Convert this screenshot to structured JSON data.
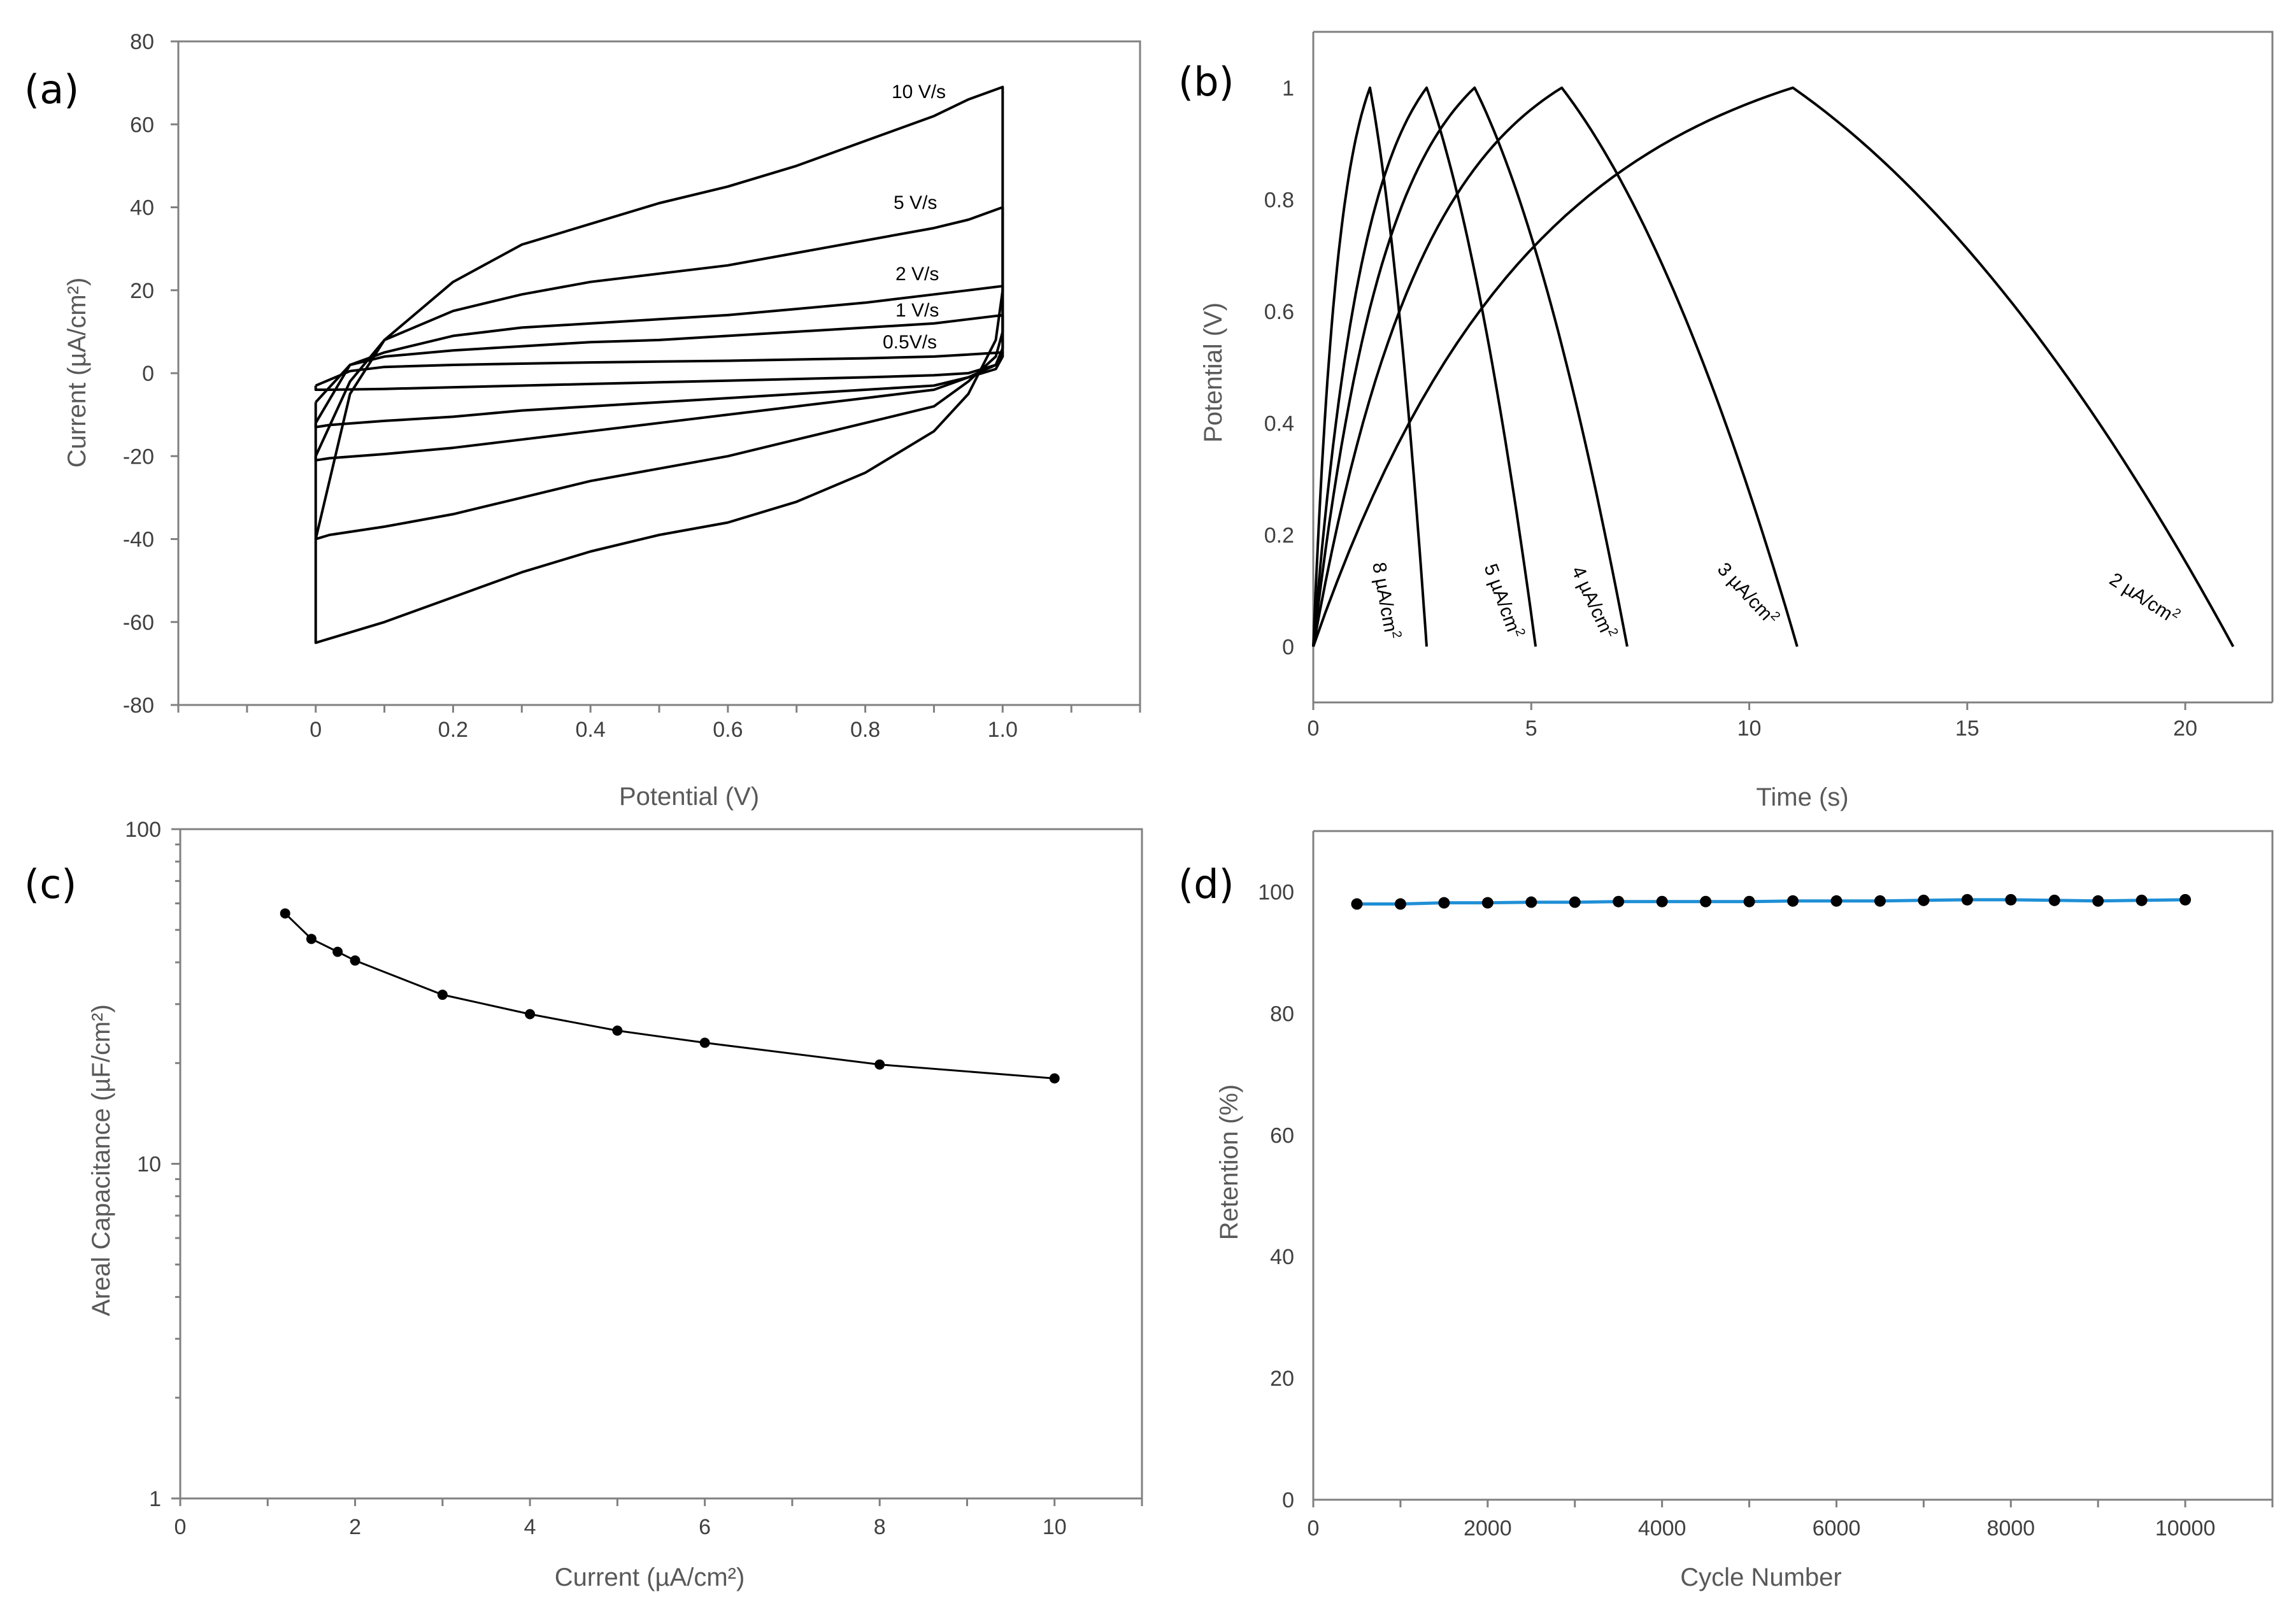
{
  "chart_data": [
    {
      "panel": "(a)",
      "type": "line",
      "title": "",
      "xlabel": "Potential (V)",
      "ylabel": "Current (µA/cm²)",
      "xlim": [
        -0.2,
        1.2
      ],
      "ylim": [
        -80,
        80
      ],
      "xticks": [
        0,
        0.2,
        0.4,
        0.6,
        0.8,
        1.0
      ],
      "xtick_labels": [
        "0",
        "0.2",
        "0.4",
        "0.6",
        "0.8",
        "1.0"
      ],
      "yticks": [
        -80,
        -60,
        -40,
        -20,
        0,
        20,
        40,
        60,
        80
      ],
      "ytick_labels": [
        "-80",
        "-60",
        "-40",
        "-20",
        "0",
        "20",
        "40",
        "60",
        "80"
      ],
      "series": [
        {
          "name": "10 V/s",
          "upper": [
            [
              0,
              -40
            ],
            [
              0.05,
              -5
            ],
            [
              0.1,
              8
            ],
            [
              0.2,
              22
            ],
            [
              0.3,
              31
            ],
            [
              0.4,
              36
            ],
            [
              0.5,
              41
            ],
            [
              0.6,
              45
            ],
            [
              0.7,
              50
            ],
            [
              0.8,
              56
            ],
            [
              0.9,
              62
            ],
            [
              0.95,
              66
            ],
            [
              1.0,
              69
            ]
          ],
          "lower": [
            [
              1.0,
              69
            ],
            [
              1.0,
              20
            ],
            [
              0.99,
              8
            ],
            [
              0.95,
              -5
            ],
            [
              0.9,
              -14
            ],
            [
              0.8,
              -24
            ],
            [
              0.7,
              -31
            ],
            [
              0.6,
              -36
            ],
            [
              0.5,
              -39
            ],
            [
              0.4,
              -43
            ],
            [
              0.3,
              -48
            ],
            [
              0.2,
              -54
            ],
            [
              0.1,
              -60
            ],
            [
              0.02,
              -64
            ],
            [
              0,
              -65
            ],
            [
              0,
              -40
            ]
          ]
        },
        {
          "name": "5 V/s",
          "upper": [
            [
              0,
              -20
            ],
            [
              0.05,
              -2
            ],
            [
              0.1,
              8
            ],
            [
              0.2,
              15
            ],
            [
              0.3,
              19
            ],
            [
              0.4,
              22
            ],
            [
              0.5,
              24
            ],
            [
              0.6,
              26
            ],
            [
              0.7,
              29
            ],
            [
              0.8,
              32
            ],
            [
              0.9,
              35
            ],
            [
              0.95,
              37
            ],
            [
              1.0,
              40
            ]
          ],
          "lower": [
            [
              1.0,
              40
            ],
            [
              1.0,
              10
            ],
            [
              0.99,
              4
            ],
            [
              0.95,
              -2
            ],
            [
              0.9,
              -8
            ],
            [
              0.8,
              -12
            ],
            [
              0.7,
              -16
            ],
            [
              0.6,
              -20
            ],
            [
              0.5,
              -23
            ],
            [
              0.4,
              -26
            ],
            [
              0.3,
              -30
            ],
            [
              0.2,
              -34
            ],
            [
              0.1,
              -37
            ],
            [
              0.02,
              -39
            ],
            [
              0,
              -40
            ],
            [
              0,
              -20
            ]
          ]
        },
        {
          "name": "2 V/s",
          "upper": [
            [
              0,
              -12
            ],
            [
              0.05,
              2
            ],
            [
              0.1,
              5
            ],
            [
              0.2,
              9
            ],
            [
              0.3,
              11
            ],
            [
              0.4,
              12
            ],
            [
              0.5,
              13
            ],
            [
              0.6,
              14
            ],
            [
              0.7,
              15.5
            ],
            [
              0.8,
              17
            ],
            [
              0.9,
              19
            ],
            [
              0.95,
              20
            ],
            [
              1.0,
              21
            ]
          ],
          "lower": [
            [
              1.0,
              21
            ],
            [
              1.0,
              6
            ],
            [
              0.99,
              2
            ],
            [
              0.95,
              -1
            ],
            [
              0.9,
              -4
            ],
            [
              0.8,
              -6
            ],
            [
              0.7,
              -8
            ],
            [
              0.6,
              -10
            ],
            [
              0.5,
              -12
            ],
            [
              0.4,
              -14
            ],
            [
              0.3,
              -16
            ],
            [
              0.2,
              -18
            ],
            [
              0.1,
              -19.5
            ],
            [
              0.02,
              -20.5
            ],
            [
              0,
              -21
            ],
            [
              0,
              -12
            ]
          ]
        },
        {
          "name": "1 V/s",
          "upper": [
            [
              0,
              -7
            ],
            [
              0.05,
              2
            ],
            [
              0.1,
              4
            ],
            [
              0.2,
              5.5
            ],
            [
              0.3,
              6.5
            ],
            [
              0.4,
              7.5
            ],
            [
              0.5,
              8
            ],
            [
              0.6,
              9
            ],
            [
              0.7,
              10
            ],
            [
              0.8,
              11
            ],
            [
              0.9,
              12
            ],
            [
              0.95,
              13
            ],
            [
              1.0,
              14
            ]
          ],
          "lower": [
            [
              1.0,
              14
            ],
            [
              1.0,
              4
            ],
            [
              0.99,
              1
            ],
            [
              0.95,
              -1
            ],
            [
              0.9,
              -3
            ],
            [
              0.8,
              -4
            ],
            [
              0.7,
              -5
            ],
            [
              0.6,
              -6
            ],
            [
              0.5,
              -7
            ],
            [
              0.4,
              -8
            ],
            [
              0.3,
              -9
            ],
            [
              0.2,
              -10.5
            ],
            [
              0.1,
              -11.5
            ],
            [
              0.02,
              -12.5
            ],
            [
              0,
              -13
            ],
            [
              0,
              -7
            ]
          ]
        },
        {
          "name": "0.5V/s",
          "upper": [
            [
              0,
              -3
            ],
            [
              0.05,
              0.5
            ],
            [
              0.1,
              1.5
            ],
            [
              0.2,
              2
            ],
            [
              0.3,
              2.3
            ],
            [
              0.4,
              2.6
            ],
            [
              0.5,
              2.8
            ],
            [
              0.6,
              3
            ],
            [
              0.7,
              3.3
            ],
            [
              0.8,
              3.6
            ],
            [
              0.9,
              4
            ],
            [
              0.95,
              4.5
            ],
            [
              1.0,
              5
            ]
          ],
          "lower": [
            [
              1.0,
              5
            ],
            [
              0.99,
              2
            ],
            [
              0.95,
              0
            ],
            [
              0.9,
              -0.5
            ],
            [
              0.8,
              -1
            ],
            [
              0.7,
              -1.4
            ],
            [
              0.6,
              -1.8
            ],
            [
              0.5,
              -2.2
            ],
            [
              0.4,
              -2.6
            ],
            [
              0.3,
              -3
            ],
            [
              0.2,
              -3.4
            ],
            [
              0.1,
              -3.8
            ],
            [
              0.02,
              -4
            ],
            [
              0,
              -4
            ],
            [
              0,
              -3
            ]
          ]
        }
      ],
      "annotations": [
        "10 V/s",
        "5 V/s",
        "2 V/s",
        "1 V/s",
        "0.5V/s"
      ]
    },
    {
      "panel": "(b)",
      "type": "line",
      "title": "",
      "xlabel": "Time (s)",
      "ylabel": "Potential (V)",
      "xlim": [
        0,
        22
      ],
      "ylim": [
        -0.1,
        1.1
      ],
      "xticks": [
        0,
        5,
        10,
        15,
        20
      ],
      "xtick_labels": [
        "0",
        "5",
        "10",
        "15",
        "20"
      ],
      "yticks": [
        0,
        0.2,
        0.4,
        0.6,
        0.8,
        1
      ],
      "ytick_labels": [
        "0",
        "0.2",
        "0.4",
        "0.6",
        "0.8",
        "1"
      ],
      "series": [
        {
          "name": "8 µA/cm²",
          "t_peak": 1.3,
          "t_end": 2.6
        },
        {
          "name": "5 µA/cm²",
          "t_peak": 2.6,
          "t_end": 5.1
        },
        {
          "name": "4 µA/cm²",
          "t_peak": 3.7,
          "t_end": 7.2
        },
        {
          "name": "3 µA/cm²",
          "t_peak": 5.7,
          "t_end": 11.1
        },
        {
          "name": "2 µA/cm²",
          "t_peak": 11.0,
          "t_end": 21.1
        }
      ],
      "annotations": [
        {
          "label": "8 µA/cm",
          "sup": "2"
        },
        {
          "label": "5 µA/cm",
          "sup": "2"
        },
        {
          "label": "4 µA/cm",
          "sup": "2"
        },
        {
          "label": "3 µA/cm",
          "sup": "2"
        },
        {
          "label": "2 µA/cm",
          "sup": "2"
        }
      ]
    },
    {
      "panel": "(c)",
      "type": "scatter",
      "title": "",
      "xlabel": "Current (µA/cm²)",
      "ylabel": "Areal Capacitance (µF/cm²)",
      "xlim": [
        0,
        11
      ],
      "ylim": [
        1,
        100
      ],
      "yscale": "log",
      "xticks": [
        0,
        2,
        4,
        6,
        8,
        10
      ],
      "xtick_labels": [
        "0",
        "2",
        "4",
        "6",
        "8",
        "10"
      ],
      "yticks": [
        1,
        10,
        100
      ],
      "ytick_labels": [
        "1",
        "10",
        "100"
      ],
      "x": [
        1.2,
        1.5,
        1.8,
        2,
        3,
        4,
        5,
        6,
        8,
        10
      ],
      "y": [
        56,
        47,
        43,
        40.5,
        32,
        28,
        25,
        23,
        19.8,
        18
      ]
    },
    {
      "panel": "(d)",
      "type": "scatter",
      "title": "",
      "xlabel": "Cycle Number",
      "ylabel": "Retention (%)",
      "xlim": [
        0,
        11000
      ],
      "ylim": [
        0,
        110
      ],
      "xticks": [
        0,
        2000,
        4000,
        6000,
        8000,
        10000
      ],
      "xtick_labels": [
        "0",
        "2000",
        "4000",
        "6000",
        "8000",
        "10000"
      ],
      "yticks": [
        0,
        20,
        40,
        60,
        80,
        100
      ],
      "ytick_labels": [
        "0",
        "20",
        "40",
        "60",
        "80",
        "100"
      ],
      "x": [
        500,
        1000,
        1500,
        2000,
        2500,
        3000,
        3500,
        4000,
        4500,
        5000,
        5500,
        6000,
        6500,
        7000,
        7500,
        8000,
        8500,
        9000,
        9500,
        10000
      ],
      "y": [
        98.0,
        98.0,
        98.2,
        98.2,
        98.3,
        98.3,
        98.4,
        98.4,
        98.4,
        98.4,
        98.5,
        98.5,
        98.5,
        98.6,
        98.7,
        98.7,
        98.6,
        98.5,
        98.6,
        98.7
      ],
      "line_color": "#1f8fd6"
    }
  ]
}
